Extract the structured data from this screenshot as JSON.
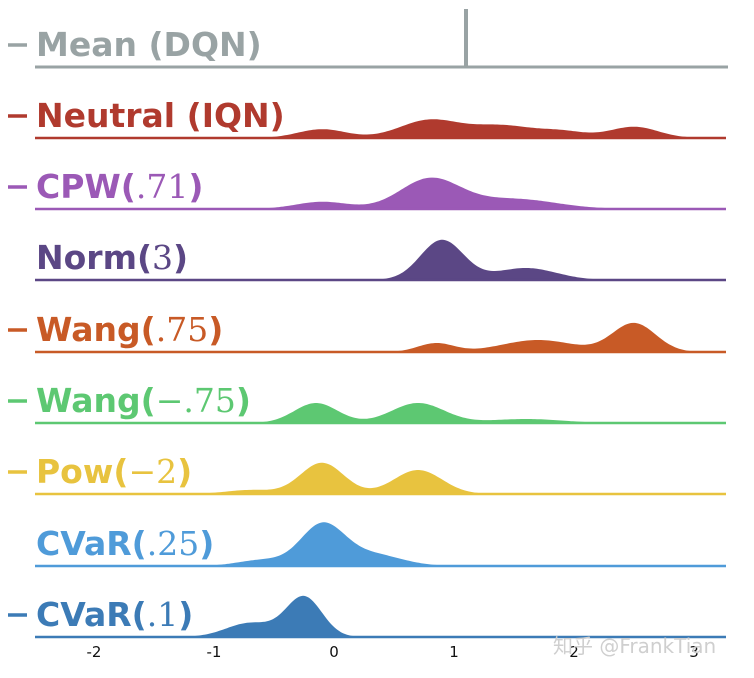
{
  "chart_data": {
    "type": "area",
    "title": "",
    "xlabel": "",
    "ylabel": "",
    "xlim": [
      -2.5,
      3.3
    ],
    "x_ticks": [
      "-2",
      "-1",
      "0",
      "1",
      "2",
      "3"
    ],
    "grid": false,
    "legend": "none",
    "series": [
      {
        "name_prefix": "Mean (DQN)",
        "name_math": "",
        "color": "#99a3a4",
        "type": "vline",
        "value": 1.1,
        "marker": true
      },
      {
        "name_prefix": "Neutral (IQN)",
        "name_math": "",
        "color": "#b03a2e",
        "marker": true,
        "peaks": [
          [
            -0.1,
            0.2,
            0.22
          ],
          [
            0.8,
            0.25,
            0.45
          ],
          [
            1.4,
            0.25,
            0.3
          ],
          [
            1.9,
            0.2,
            0.16
          ],
          [
            2.5,
            0.2,
            0.28
          ]
        ]
      },
      {
        "name_prefix": "CPW(",
        "name_math": ".71",
        "name_suffix": ")",
        "color": "#9b59b6",
        "marker": true,
        "peaks": [
          [
            -0.1,
            0.22,
            0.18
          ],
          [
            0.8,
            0.25,
            0.75
          ],
          [
            1.5,
            0.35,
            0.25
          ]
        ]
      },
      {
        "name_prefix": "Norm(",
        "name_math": "3",
        "name_suffix": ")",
        "color": "#5b4785",
        "marker": false,
        "peaks": [
          [
            0.9,
            0.18,
            1.0
          ],
          [
            1.6,
            0.25,
            0.3
          ]
        ]
      },
      {
        "name_prefix": "Wang(",
        "name_math": ".75",
        "name_suffix": ")",
        "color": "#c85a26",
        "marker": true,
        "peaks": [
          [
            0.85,
            0.15,
            0.22
          ],
          [
            1.7,
            0.3,
            0.3
          ],
          [
            2.5,
            0.18,
            0.72
          ]
        ]
      },
      {
        "name_prefix": "Wang(",
        "name_math": "−.75",
        "name_suffix": ")",
        "color": "#5dc872",
        "marker": true,
        "peaks": [
          [
            -0.15,
            0.18,
            0.5
          ],
          [
            0.7,
            0.22,
            0.5
          ],
          [
            1.6,
            0.3,
            0.1
          ]
        ]
      },
      {
        "name_prefix": "Pow(",
        "name_math": "−2",
        "name_suffix": ")",
        "color": "#e8c33f",
        "marker": true,
        "peaks": [
          [
            -0.1,
            0.18,
            0.78
          ],
          [
            0.7,
            0.2,
            0.6
          ],
          [
            -0.7,
            0.2,
            0.1
          ]
        ]
      },
      {
        "name_prefix": "CVaR(",
        "name_math": ".25",
        "name_suffix": ")",
        "color": "#4f9bd9",
        "marker": false,
        "peaks": [
          [
            -0.1,
            0.18,
            1.0
          ],
          [
            0.3,
            0.25,
            0.3
          ],
          [
            -0.6,
            0.2,
            0.15
          ]
        ]
      },
      {
        "name_prefix": "CVaR(",
        "name_math": ".1",
        "name_suffix": ")",
        "color": "#3c7bb6",
        "marker": true,
        "peaks": [
          [
            -0.25,
            0.15,
            1.0
          ],
          [
            -0.7,
            0.2,
            0.35
          ]
        ]
      }
    ]
  },
  "watermark": "知乎 @FrankTian"
}
